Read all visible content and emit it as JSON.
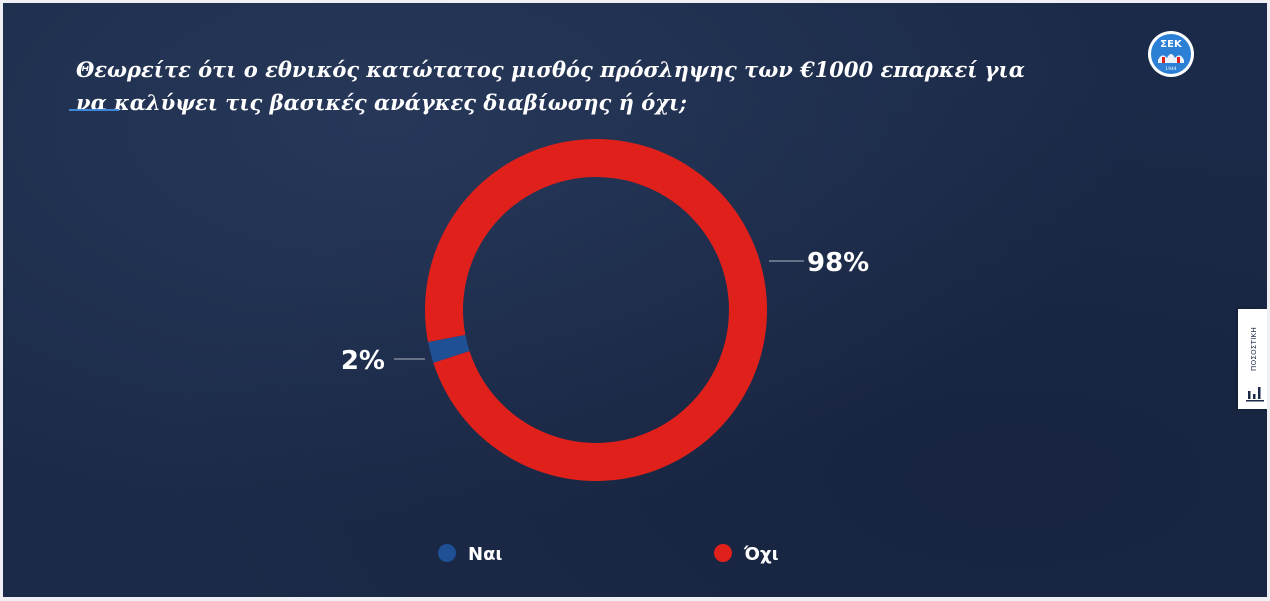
{
  "header": {
    "question": "Θεωρείτε ότι ο εθνικός κατώτατος μισθός πρόσληψης των €1000 επαρκεί για να καλύψει τις βασικές ανάγκες διαβίωσης ή όχι;"
  },
  "logo": {
    "text": "ΣΕΚ",
    "year": "1944",
    "icon": "sek-union-logo",
    "color": "#2b7fd4"
  },
  "side_tab": {
    "label": "ΠΟΣΟΣΤΙΚΗ",
    "icon": "bar-chart-icon"
  },
  "chart_data": {
    "type": "pie",
    "style": "donut",
    "categories": [
      "Ναι",
      "Όχι"
    ],
    "values": [
      2,
      98
    ],
    "labels": [
      "2%",
      "98%"
    ],
    "colors": [
      "#1f4f94",
      "#e0201b"
    ],
    "unit": "%",
    "legend_position": "bottom"
  }
}
